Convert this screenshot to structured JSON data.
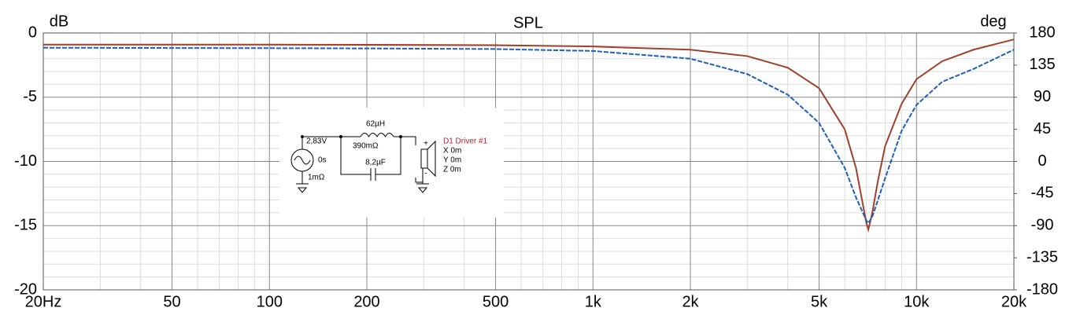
{
  "chart_data": {
    "type": "line",
    "title": "SPL",
    "y_label": "dB",
    "y2_label": "deg",
    "xscale": "log",
    "grid": true,
    "x": [
      20,
      100,
      200,
      500,
      1000,
      2000,
      3000,
      4000,
      5000,
      6000,
      6500,
      7000,
      7100,
      7300,
      7600,
      8000,
      9000,
      10000,
      12000,
      15000,
      20000
    ],
    "series": [
      {
        "color": "#a0402a",
        "style": "solid",
        "values": [
          -0.9,
          -0.9,
          -0.92,
          -0.95,
          -1.05,
          -1.3,
          -1.8,
          -2.7,
          -4.3,
          -7.5,
          -10.5,
          -14.8,
          -15.3,
          -14,
          -11.5,
          -8.8,
          -5.5,
          -3.6,
          -2.2,
          -1.3,
          -0.5
        ]
      },
      {
        "color": "#1f5fbf",
        "style": "dashed",
        "values": [
          -1.15,
          -1.18,
          -1.2,
          -1.25,
          -1.4,
          -2.0,
          -3.2,
          -4.8,
          -7,
          -10.5,
          -12.8,
          -14.6,
          -14.8,
          -14.3,
          -13,
          -11.3,
          -7.6,
          -5.6,
          -3.8,
          -2.8,
          -1.3
        ]
      }
    ],
    "xlim": [
      20,
      20000
    ],
    "xticks": [
      {
        "value": 20,
        "label": "20Hz"
      },
      50,
      100,
      200,
      500,
      {
        "value": 1000,
        "label": "1k"
      },
      {
        "value": 2000,
        "label": "2k"
      },
      {
        "value": 5000,
        "label": "5k"
      },
      {
        "value": 10000,
        "label": "10k"
      },
      {
        "value": 20000,
        "label": "20k"
      }
    ],
    "xminorticks": [
      30,
      40,
      60,
      70,
      80,
      90,
      300,
      400,
      600,
      700,
      800,
      900,
      3000,
      4000,
      6000,
      7000,
      8000,
      9000
    ],
    "ylim": [
      -20,
      0
    ],
    "yticks": [
      -20,
      -15,
      -10,
      -5,
      0
    ],
    "yminorticks": [
      -19,
      -18,
      -17,
      -16,
      -14,
      -13,
      -12,
      -11,
      -9,
      -8,
      -7,
      -6,
      -4,
      -3,
      -2,
      -1
    ],
    "y2lim": [
      -180,
      180
    ],
    "y2ticks": [
      -180,
      -135,
      -90,
      -45,
      0,
      45,
      90,
      135,
      180
    ]
  },
  "inset": {
    "inductor": "62µH",
    "voltage": "2,83V",
    "resistance": "390mΩ",
    "delay": "0s",
    "capacitor": "8,2µF",
    "source_resistance": "1mΩ",
    "driver": "D1 Driver #1",
    "x": "X 0m",
    "y": "Y 0m",
    "z": "Z 0m",
    "plus": "+",
    "minus": "-"
  }
}
